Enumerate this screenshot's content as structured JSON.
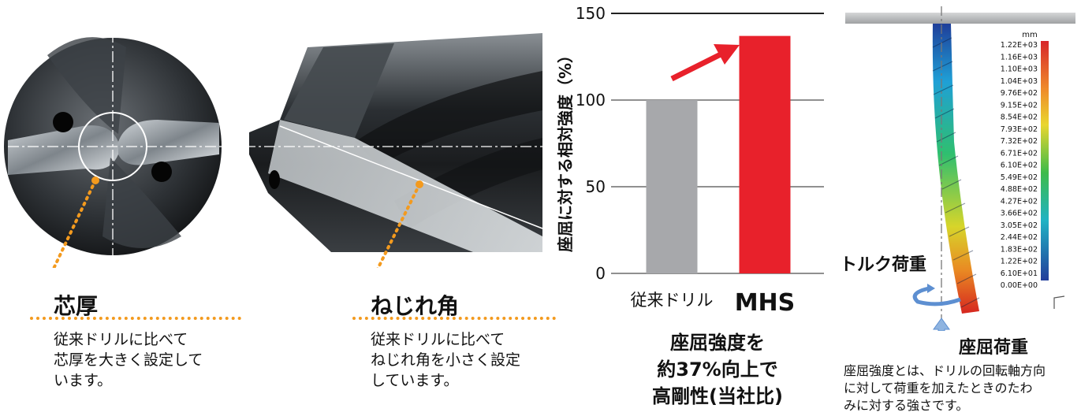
{
  "left": {
    "label": "芯厚",
    "desc_lines": [
      "従来ドリルに比べて",
      "芯厚を大きく設定して",
      "います。"
    ]
  },
  "middle": {
    "label": "ねじれ角",
    "desc_lines": [
      "従来ドリルに比べて",
      "ねじれ角を小さく設定",
      "しています。"
    ]
  },
  "chart_data": {
    "type": "bar",
    "categories": [
      "従来ドリル",
      "MHS"
    ],
    "values": [
      100,
      137
    ],
    "bar_colors": [
      "#a7a8ab",
      "#e8212b"
    ],
    "ylabel": "座屈に対する相対強度（%）",
    "yticks": [
      0,
      50,
      100,
      150
    ],
    "ylim": [
      0,
      150
    ],
    "grid": true,
    "arrow_color": "#e8212b"
  },
  "chart_caption": [
    "座屈強度を",
    "約37%向上で",
    "高剛性(当社比)"
  ],
  "sim": {
    "unit": "mm",
    "scale": [
      "1.22E+03",
      "1.16E+03",
      "1.10E+03",
      "1.04E+03",
      "9.76E+02",
      "9.15E+02",
      "8.54E+02",
      "7.93E+02",
      "7.32E+02",
      "6.71E+02",
      "6.10E+02",
      "5.49E+02",
      "4.88E+02",
      "4.27E+02",
      "3.66E+02",
      "3.05E+02",
      "2.44E+02",
      "1.83E+02",
      "1.22E+02",
      "6.10E+01",
      "0.00E+00"
    ],
    "torque_label": "トルク荷重",
    "buckling_label": "座屈荷重",
    "desc_lines": [
      "座屈強度とは、ドリルの回転軸方向",
      "に対して荷重を加えたときのたわ",
      "みに対する強さです。"
    ]
  }
}
